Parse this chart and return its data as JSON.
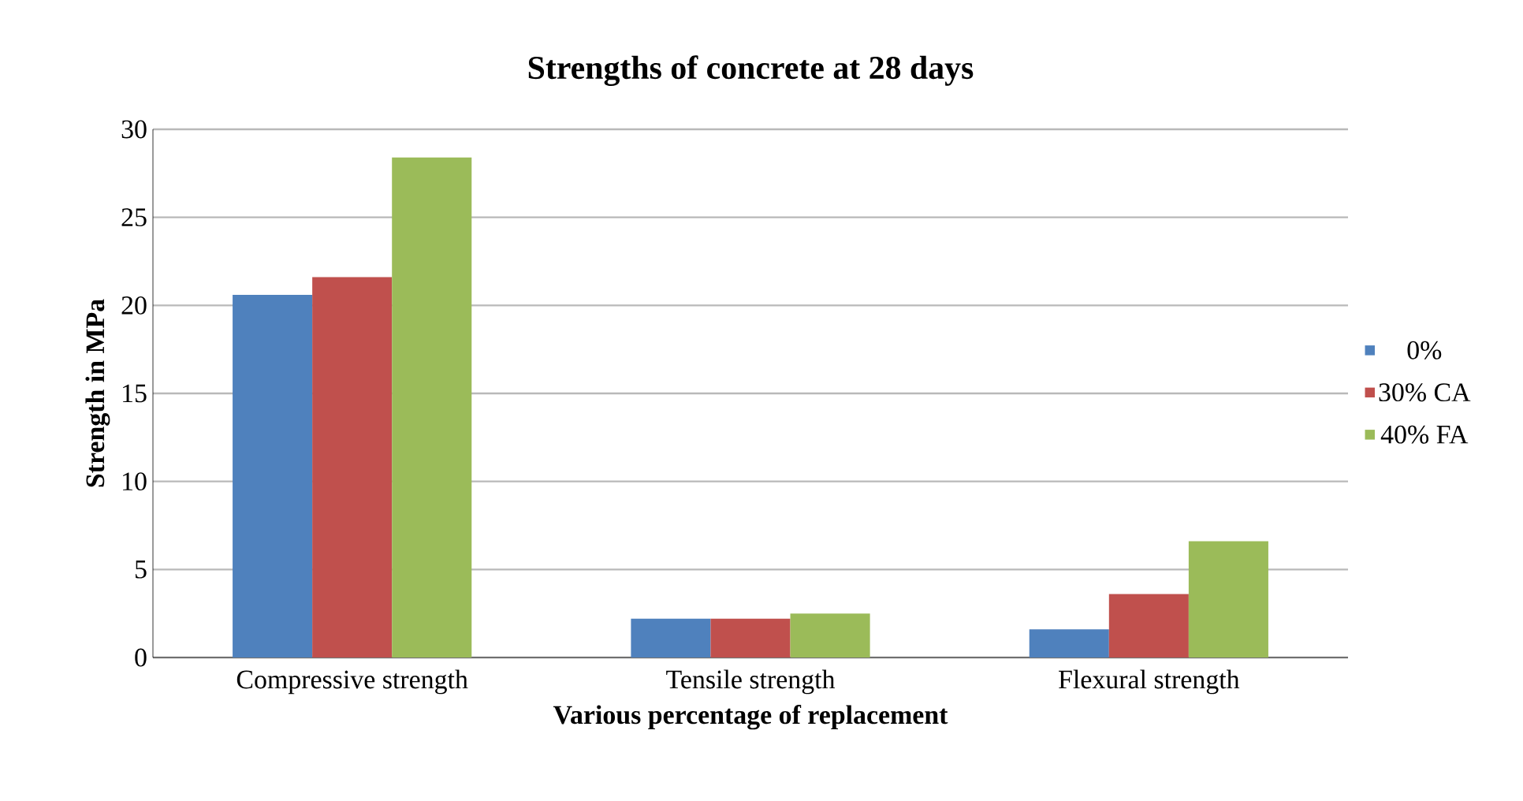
{
  "chart_data": {
    "type": "bar",
    "title": "Strengths of concrete at 28 days",
    "xlabel": "Various percentage of replacement",
    "ylabel": "Strength in MPa",
    "categories": [
      "Compressive strength",
      "Tensile strength",
      "Flexural strength"
    ],
    "series": [
      {
        "name": "0%",
        "color": "#4f81bd",
        "values": [
          20.6,
          2.2,
          1.6
        ]
      },
      {
        "name": "30% CA",
        "color": "#c0504d",
        "values": [
          21.6,
          2.2,
          3.6
        ]
      },
      {
        "name": "40% FA",
        "color": "#9bbb59",
        "values": [
          28.4,
          2.5,
          6.6
        ]
      }
    ],
    "ylim": [
      0,
      30
    ],
    "yticks": [
      0,
      5,
      10,
      15,
      20,
      25,
      30
    ],
    "grid": "y",
    "legend": "right"
  }
}
